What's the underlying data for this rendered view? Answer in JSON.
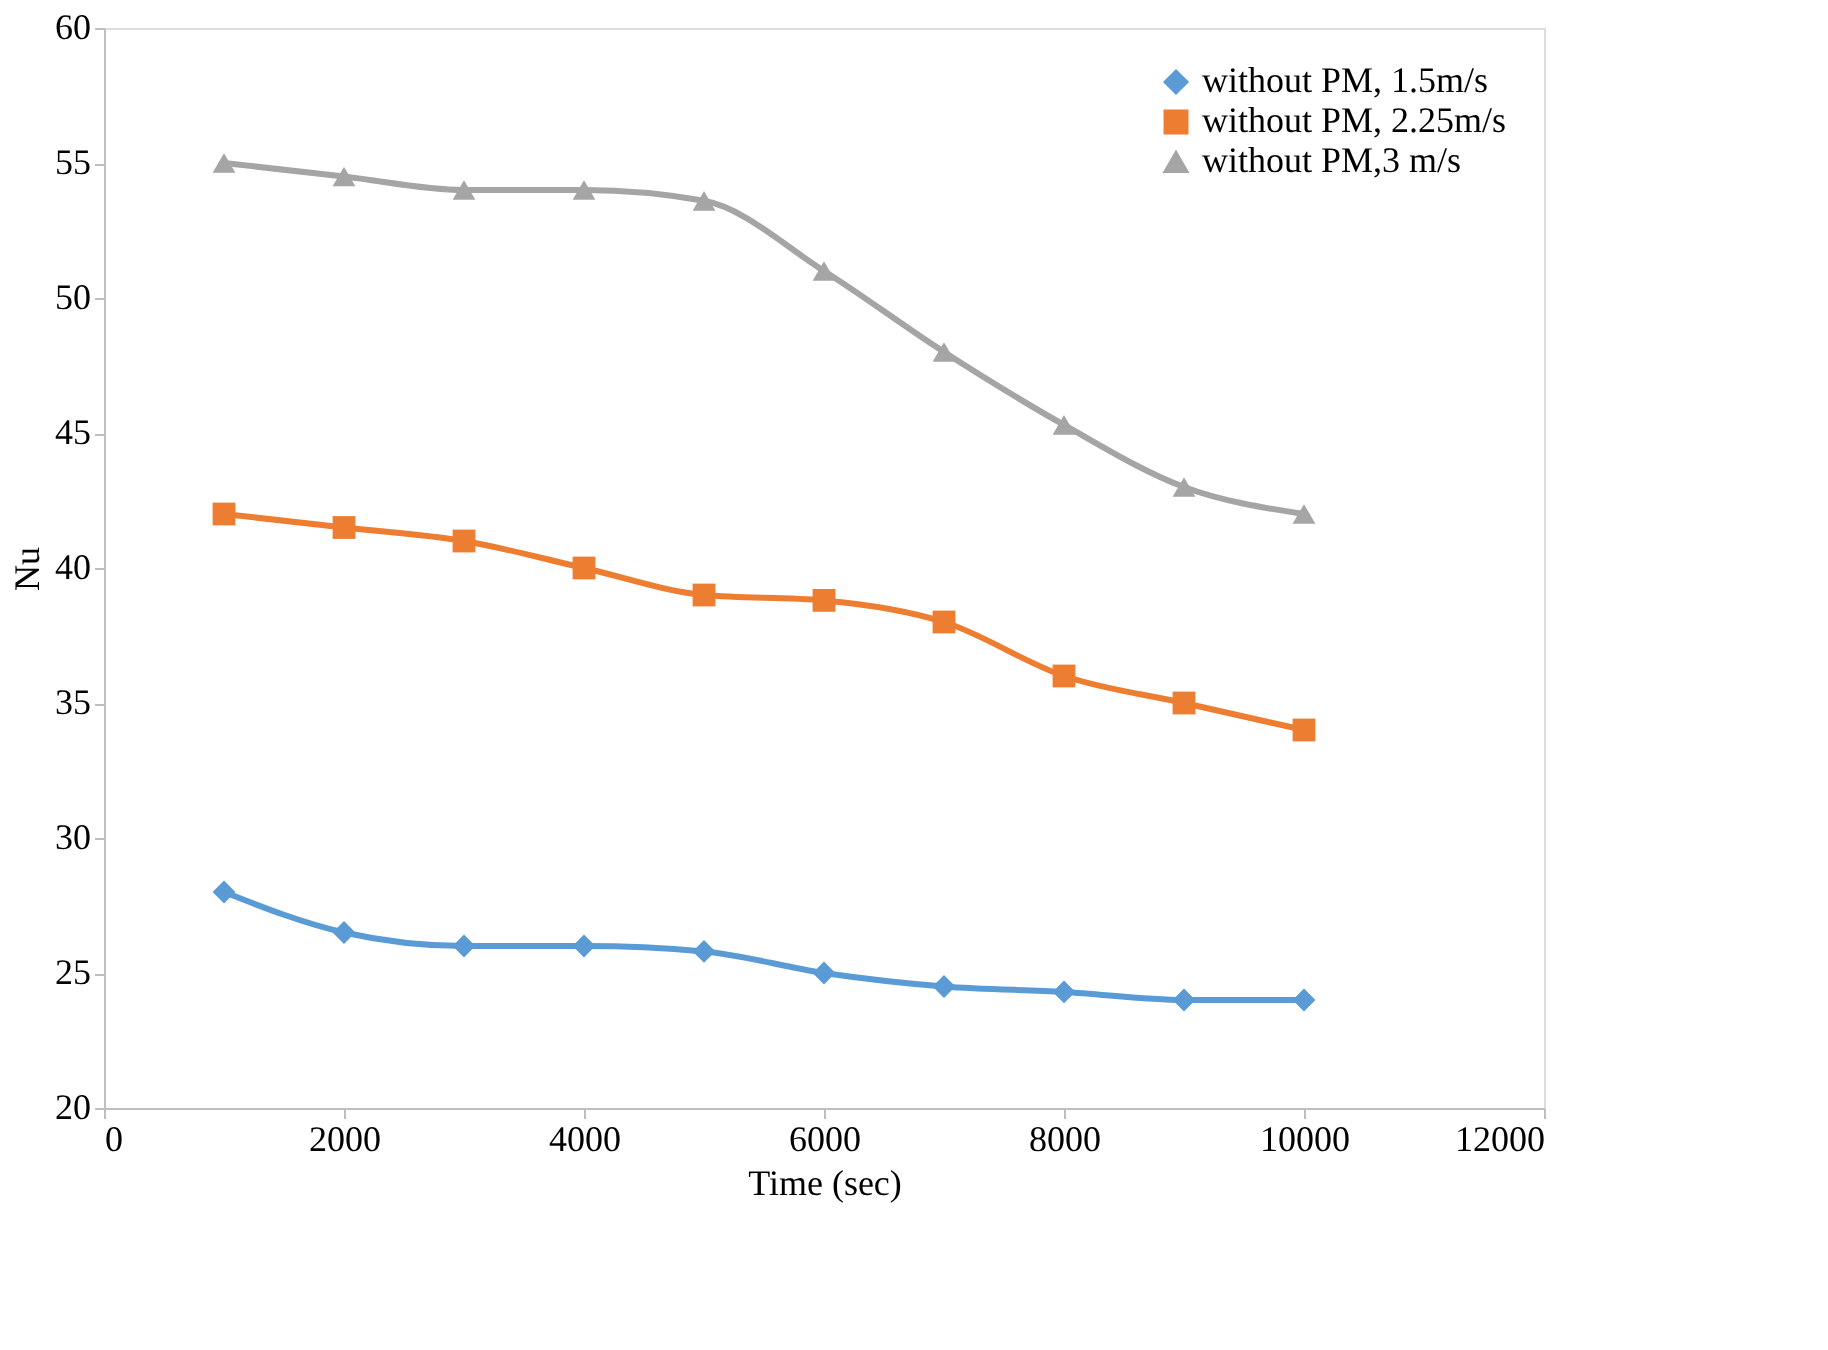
{
  "chart_data": {
    "type": "line",
    "xlabel": "Time (sec)",
    "ylabel": "Nu",
    "x": [
      1000,
      2000,
      3000,
      4000,
      5000,
      6000,
      7000,
      8000,
      9000,
      10000
    ],
    "series": [
      {
        "name": "without PM, 1.5m/s",
        "color": "#5b9bd5",
        "marker": "diamond",
        "values": [
          28,
          26.5,
          26,
          26,
          25.8,
          25,
          24.5,
          24.3,
          24,
          24
        ]
      },
      {
        "name": "without PM, 2.25m/s",
        "color": "#ed7d31",
        "marker": "square",
        "values": [
          42,
          41.5,
          41,
          40,
          39,
          38.8,
          38,
          36,
          35,
          34
        ]
      },
      {
        "name": "without PM,3 m/s",
        "color": "#a5a5a5",
        "marker": "triangle",
        "values": [
          55,
          54.5,
          54,
          54,
          53.6,
          51,
          48,
          45.3,
          43,
          42
        ]
      }
    ],
    "xlim": [
      0,
      12000
    ],
    "xticks": [
      0,
      2000,
      4000,
      6000,
      8000,
      10000,
      12000
    ],
    "ylim": [
      20,
      60
    ],
    "yticks": [
      20,
      25,
      30,
      35,
      40,
      45,
      50,
      55,
      60
    ],
    "grid": false,
    "legend": "top right",
    "line_style": "solid"
  }
}
